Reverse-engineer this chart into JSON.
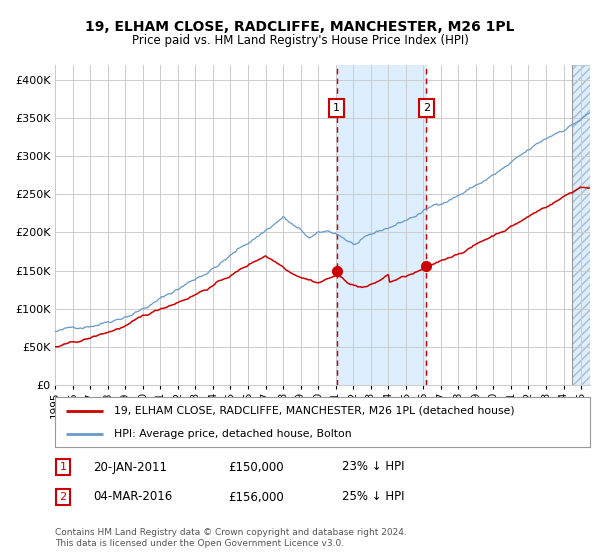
{
  "title": "19, ELHAM CLOSE, RADCLIFFE, MANCHESTER, M26 1PL",
  "subtitle": "Price paid vs. HM Land Registry's House Price Index (HPI)",
  "legend_line1": "19, ELHAM CLOSE, RADCLIFFE, MANCHESTER, M26 1PL (detached house)",
  "legend_line2": "HPI: Average price, detached house, Bolton",
  "footnote": "Contains HM Land Registry data © Crown copyright and database right 2024.\nThis data is licensed under the Open Government Licence v3.0.",
  "sale1_date": "20-JAN-2011",
  "sale1_price": "£150,000",
  "sale1_pct": "23% ↓ HPI",
  "sale2_date": "04-MAR-2016",
  "sale2_price": "£156,000",
  "sale2_pct": "25% ↓ HPI",
  "red_color": "#cc0000",
  "blue_color": "#6699cc",
  "shade_color": "#ddeeff",
  "grid_color": "#cccccc",
  "background_color": "#ffffff",
  "ylim": [
    0,
    420000
  ],
  "yticks": [
    0,
    50000,
    100000,
    150000,
    200000,
    250000,
    300000,
    350000,
    400000
  ],
  "sale1_x": 2011.05,
  "sale1_y": 150000,
  "sale2_x": 2016.17,
  "sale2_y": 156000,
  "xmin": 1995.0,
  "xmax": 2025.5,
  "hatch_start": 2024.5
}
